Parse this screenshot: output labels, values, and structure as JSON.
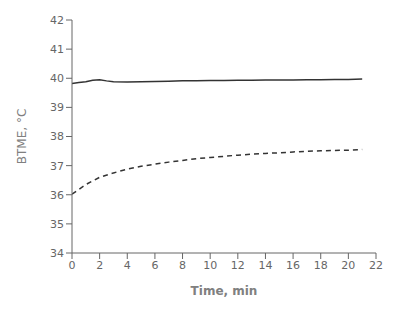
{
  "chart_data": {
    "type": "line",
    "xlabel": "Time, min",
    "ylabel": "BTME, °C",
    "series": [
      {
        "x": [
          0,
          0.5,
          1,
          1.5,
          2,
          2.5,
          3,
          4,
          5,
          6,
          7,
          8,
          9,
          10,
          11,
          12,
          13,
          14,
          15,
          16,
          17,
          18,
          19,
          20,
          21
        ],
        "values": [
          39.82,
          39.85,
          39.88,
          39.93,
          39.95,
          39.91,
          39.88,
          39.87,
          39.88,
          39.89,
          39.9,
          39.91,
          39.91,
          39.92,
          39.92,
          39.93,
          39.93,
          39.94,
          39.94,
          39.94,
          39.95,
          39.95,
          39.96,
          39.96,
          39.97
        ],
        "color": "#333333",
        "line_style": "solid"
      },
      {
        "x": [
          0,
          1,
          2,
          3,
          4,
          5,
          6,
          7,
          8,
          9,
          10,
          11,
          12,
          13,
          14,
          15,
          16,
          17,
          18,
          19,
          20,
          21
        ],
        "values": [
          36.02,
          36.35,
          36.6,
          36.75,
          36.88,
          36.98,
          37.05,
          37.12,
          37.18,
          37.24,
          37.28,
          37.32,
          37.36,
          37.39,
          37.42,
          37.44,
          37.47,
          37.49,
          37.51,
          37.52,
          37.53,
          37.55
        ],
        "color": "#333333",
        "line_style": "dashed"
      }
    ],
    "xlim": [
      0,
      22
    ],
    "ylim": [
      34,
      42
    ],
    "xticks": [
      0,
      2,
      4,
      6,
      8,
      10,
      12,
      14,
      16,
      18,
      20,
      22
    ],
    "yticks": [
      34,
      35,
      36,
      37,
      38,
      39,
      40,
      41,
      42
    ],
    "grid": false
  }
}
